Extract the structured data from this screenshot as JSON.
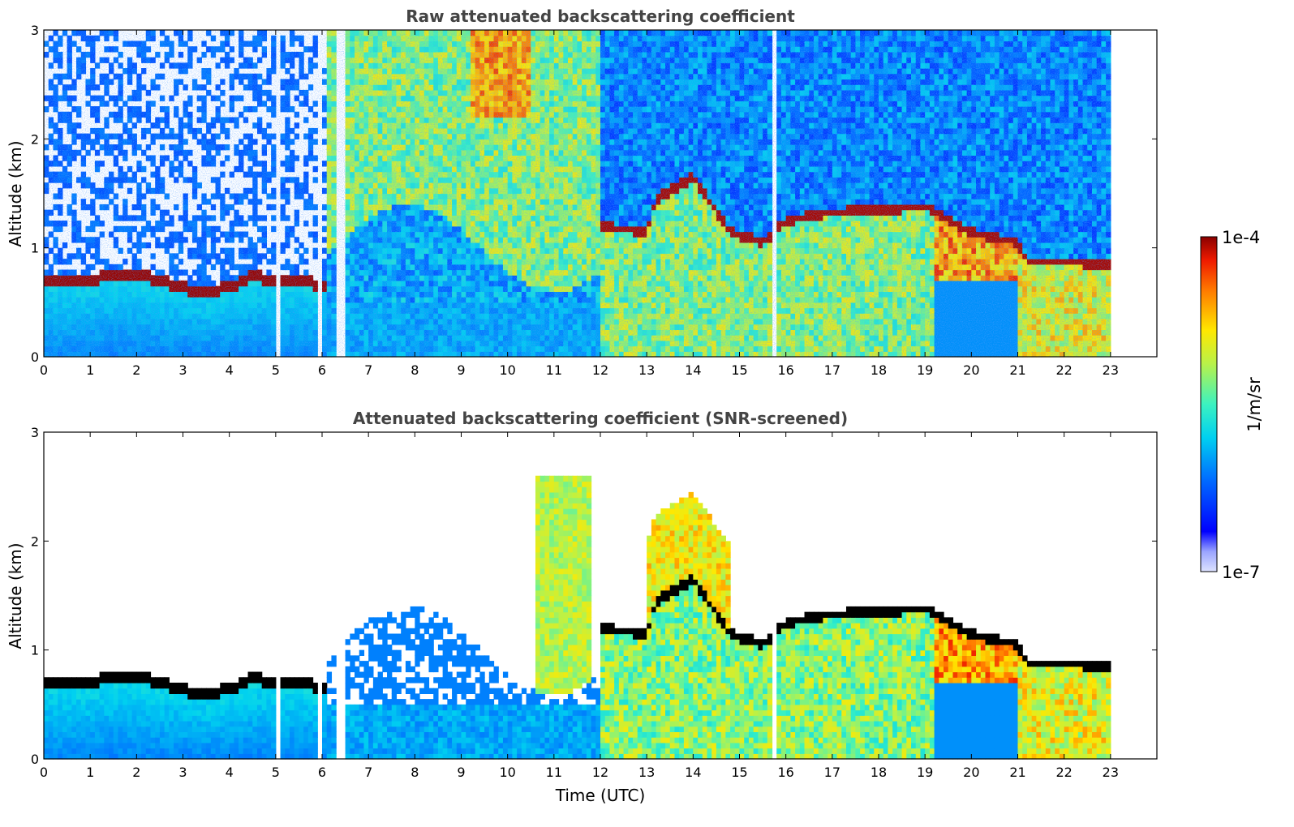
{
  "chart_data": [
    {
      "type": "heatmap",
      "title": "Raw attenuated backscattering coefficient",
      "xlabel": "",
      "ylabel": "Altitude (km)",
      "xlim": [
        0,
        24
      ],
      "ylim": [
        0,
        3
      ],
      "xticks": [
        "0",
        "1",
        "2",
        "3",
        "4",
        "5",
        "6",
        "7",
        "8",
        "9",
        "10",
        "11",
        "12",
        "13",
        "14",
        "15",
        "16",
        "17",
        "18",
        "19",
        "20",
        "21",
        "22",
        "23"
      ],
      "yticks": [
        "0",
        "1",
        "2",
        "3"
      ],
      "data_end_time_utc": 23,
      "boundary_layer_top_km": [
        [
          0,
          0.72
        ],
        [
          0.5,
          0.7
        ],
        [
          1,
          0.68
        ],
        [
          1.4,
          0.76
        ],
        [
          2,
          0.75
        ],
        [
          2.6,
          0.7
        ],
        [
          3,
          0.63
        ],
        [
          3.5,
          0.6
        ],
        [
          4,
          0.64
        ],
        [
          4.5,
          0.74
        ],
        [
          5,
          0.7
        ],
        [
          6,
          0.67
        ],
        [
          12,
          1.2
        ],
        [
          13,
          1.15
        ],
        [
          13.2,
          1.45
        ],
        [
          14,
          1.65
        ],
        [
          14.8,
          1.15
        ],
        [
          15.5,
          1.05
        ],
        [
          16,
          1.25
        ],
        [
          17,
          1.33
        ],
        [
          18,
          1.35
        ],
        [
          19,
          1.38
        ],
        [
          20,
          1.15
        ],
        [
          21,
          1.05
        ],
        [
          21.2,
          0.88
        ],
        [
          22,
          0.88
        ],
        [
          23,
          0.84
        ]
      ],
      "colorbar": {
        "label": "1/m/sr",
        "min_label": "1e-7",
        "max_label": "1e-4",
        "scale": "log",
        "colormap": "jet"
      }
    },
    {
      "type": "heatmap",
      "title": "Attenuated backscattering coefficient (SNR-screened)",
      "xlabel": "Time (UTC)",
      "ylabel": "Altitude (km)",
      "xlim": [
        0,
        24
      ],
      "ylim": [
        0,
        3
      ],
      "xticks": [
        "0",
        "1",
        "2",
        "3",
        "4",
        "5",
        "6",
        "7",
        "8",
        "9",
        "10",
        "11",
        "12",
        "13",
        "14",
        "15",
        "16",
        "17",
        "18",
        "19",
        "20",
        "21",
        "22",
        "23"
      ],
      "yticks": [
        "0",
        "1",
        "2",
        "3"
      ],
      "data_end_time_utc": 23,
      "colorbar": {
        "label": "1/m/sr",
        "min_label": "1e-7",
        "max_label": "1e-4",
        "scale": "log",
        "colormap": "jet"
      }
    }
  ],
  "colors": {
    "text": "#000000",
    "title": "#444444",
    "frame": "#000000"
  }
}
